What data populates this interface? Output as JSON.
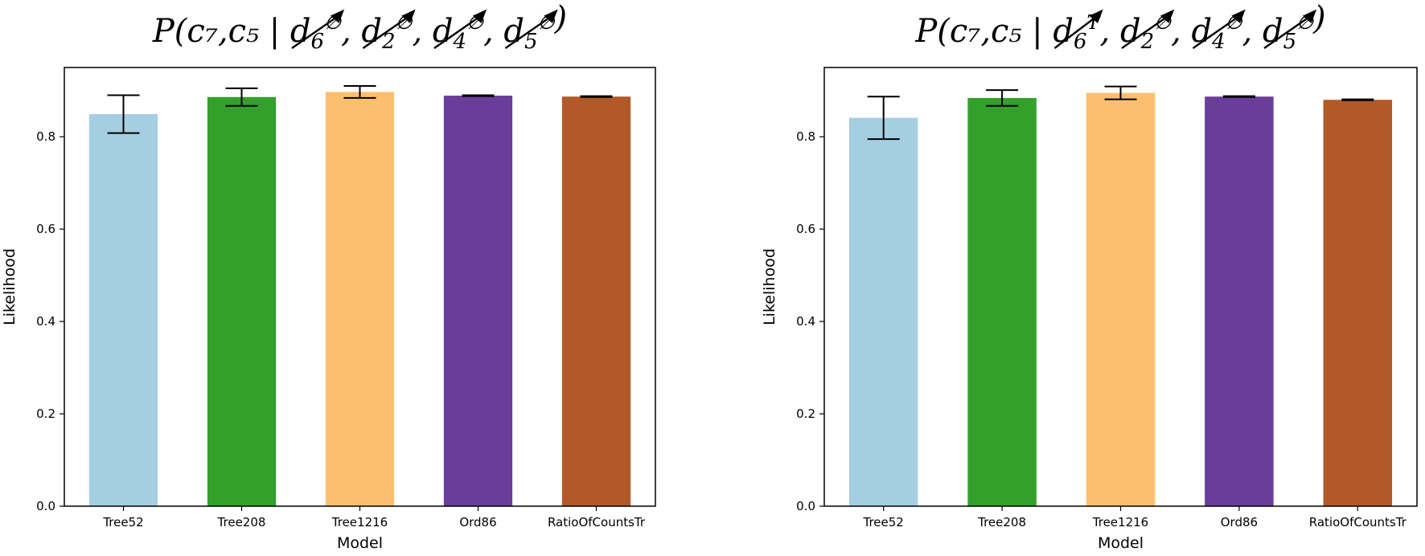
{
  "chart_data": [
    {
      "type": "bar",
      "title": {
        "prefix": "P(",
        "vars": "c₇,c₅",
        "sep": " | ",
        "terms": [
          {
            "base": "d",
            "sub": "6",
            "sup": "∅"
          },
          {
            "base": "d",
            "sub": "2",
            "sup": "∅"
          },
          {
            "base": "d",
            "sub": "4",
            "sup": "∅"
          },
          {
            "base": "d",
            "sub": "5",
            "sup": "∅"
          }
        ],
        "suffix": ")"
      },
      "xlabel": "Model",
      "ylabel": "Likelihood",
      "ylim": [
        0,
        0.95
      ],
      "yticks": [
        "0.0",
        "0.2",
        "0.4",
        "0.6",
        "0.8"
      ],
      "yticks_values": [
        0.0,
        0.2,
        0.4,
        0.6,
        0.8
      ],
      "categories": [
        "Tree52",
        "Tree208",
        "Tree1216",
        "Ord86",
        "RatioOfCountsTr"
      ],
      "values": [
        0.849,
        0.886,
        0.897,
        0.889,
        0.887
      ],
      "errors": [
        0.041,
        0.019,
        0.013,
        0.001,
        0.001
      ],
      "colors": [
        "#a6cee3",
        "#33a02c",
        "#fdbf6f",
        "#6a3d9a",
        "#b15928"
      ]
    },
    {
      "type": "bar",
      "title": {
        "prefix": "P(",
        "vars": "c₇,c₅",
        "sep": " | ",
        "terms": [
          {
            "base": "d",
            "sub": "6",
            "sup": "T"
          },
          {
            "base": "d",
            "sub": "2",
            "sup": "∅"
          },
          {
            "base": "d",
            "sub": "4",
            "sup": "∅"
          },
          {
            "base": "d",
            "sub": "5",
            "sup": "∅"
          }
        ],
        "suffix": ")"
      },
      "xlabel": "Model",
      "ylabel": "Likelihood",
      "ylim": [
        0,
        0.95
      ],
      "yticks": [
        "0.0",
        "0.2",
        "0.4",
        "0.6",
        "0.8"
      ],
      "yticks_values": [
        0.0,
        0.2,
        0.4,
        0.6,
        0.8
      ],
      "categories": [
        "Tree52",
        "Tree208",
        "Tree1216",
        "Ord86",
        "RatioOfCountsTr"
      ],
      "values": [
        0.841,
        0.884,
        0.895,
        0.887,
        0.88
      ],
      "errors": [
        0.046,
        0.017,
        0.014,
        0.001,
        0.001
      ],
      "colors": [
        "#a6cee3",
        "#33a02c",
        "#fdbf6f",
        "#6a3d9a",
        "#b15928"
      ]
    }
  ]
}
